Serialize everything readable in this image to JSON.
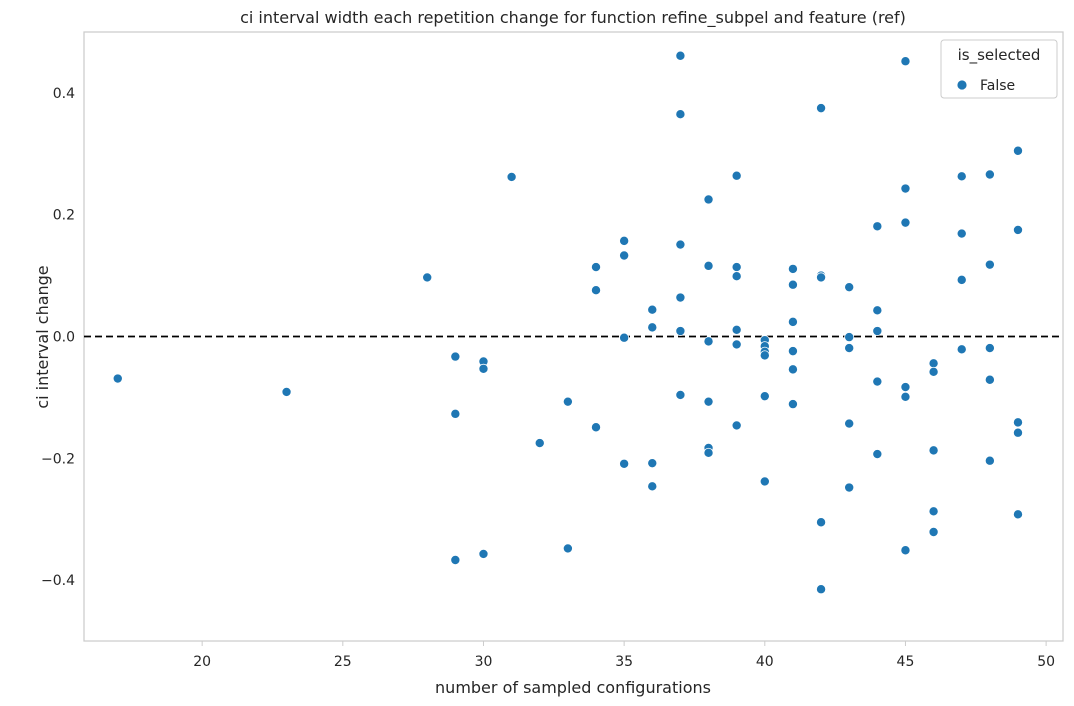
{
  "chart_data": {
    "type": "scatter",
    "title": "ci interval width each repetition change for function refine_subpel and feature (ref)",
    "xlabel": "number of sampled configurations",
    "ylabel": "ci interval change",
    "xlim": [
      15.8,
      50.6
    ],
    "ylim": [
      -0.5,
      0.5
    ],
    "xticks": [
      20,
      25,
      30,
      35,
      40,
      45,
      50
    ],
    "yticks": [
      -0.4,
      -0.2,
      0.0,
      0.2,
      0.4
    ],
    "ytick_labels": [
      "−0.4",
      "−0.2",
      "0.0",
      "0.2",
      "0.4"
    ],
    "grid": false,
    "reference_line": {
      "y": 0.0,
      "style": "dashed",
      "color": "#000000"
    },
    "legend": {
      "title": "is_selected",
      "placement": "top-right"
    },
    "series": [
      {
        "name": "False",
        "color": "#1f77b4",
        "points": [
          [
            17,
            -0.069
          ],
          [
            23,
            -0.091
          ],
          [
            28,
            0.097
          ],
          [
            29,
            -0.033
          ],
          [
            29,
            -0.127
          ],
          [
            29,
            -0.367
          ],
          [
            30,
            -0.041
          ],
          [
            30,
            -0.053
          ],
          [
            30,
            -0.357
          ],
          [
            31,
            0.262
          ],
          [
            32,
            -0.175
          ],
          [
            33,
            -0.107
          ],
          [
            33,
            -0.348
          ],
          [
            34,
            0.114
          ],
          [
            34,
            0.076
          ],
          [
            34,
            -0.149
          ],
          [
            35,
            0.157
          ],
          [
            35,
            0.133
          ],
          [
            35,
            -0.002
          ],
          [
            35,
            -0.209
          ],
          [
            36,
            0.044
          ],
          [
            36,
            0.015
          ],
          [
            36,
            -0.208
          ],
          [
            36,
            -0.246
          ],
          [
            37,
            0.461
          ],
          [
            37,
            0.365
          ],
          [
            37,
            0.151
          ],
          [
            37,
            0.064
          ],
          [
            37,
            0.009
          ],
          [
            37,
            -0.096
          ],
          [
            38,
            0.225
          ],
          [
            38,
            0.116
          ],
          [
            38,
            -0.008
          ],
          [
            38,
            -0.107
          ],
          [
            38,
            -0.183
          ],
          [
            38,
            -0.191
          ],
          [
            39,
            0.264
          ],
          [
            39,
            0.114
          ],
          [
            39,
            0.099
          ],
          [
            39,
            0.011
          ],
          [
            39,
            -0.013
          ],
          [
            39,
            -0.146
          ],
          [
            40,
            -0.006
          ],
          [
            40,
            -0.016
          ],
          [
            40,
            -0.025
          ],
          [
            40,
            -0.031
          ],
          [
            40,
            -0.098
          ],
          [
            40,
            -0.238
          ],
          [
            41,
            0.111
          ],
          [
            41,
            0.085
          ],
          [
            41,
            0.024
          ],
          [
            41,
            -0.024
          ],
          [
            41,
            -0.054
          ],
          [
            41,
            -0.111
          ],
          [
            42,
            0.375
          ],
          [
            42,
            0.1
          ],
          [
            42,
            0.097
          ],
          [
            42,
            -0.305
          ],
          [
            42,
            -0.415
          ],
          [
            43,
            0.081
          ],
          [
            43,
            -0.001
          ],
          [
            43,
            -0.019
          ],
          [
            43,
            -0.143
          ],
          [
            43,
            -0.248
          ],
          [
            44,
            0.181
          ],
          [
            44,
            0.043
          ],
          [
            44,
            0.009
          ],
          [
            44,
            -0.074
          ],
          [
            44,
            -0.193
          ],
          [
            45,
            0.452
          ],
          [
            45,
            0.243
          ],
          [
            45,
            0.187
          ],
          [
            45,
            -0.083
          ],
          [
            45,
            -0.099
          ],
          [
            45,
            -0.351
          ],
          [
            46,
            -0.044
          ],
          [
            46,
            -0.058
          ],
          [
            46,
            -0.187
          ],
          [
            46,
            -0.287
          ],
          [
            46,
            -0.321
          ],
          [
            47,
            0.263
          ],
          [
            47,
            0.169
          ],
          [
            47,
            0.093
          ],
          [
            47,
            -0.021
          ],
          [
            48,
            0.266
          ],
          [
            48,
            0.118
          ],
          [
            48,
            -0.019
          ],
          [
            48,
            -0.071
          ],
          [
            48,
            -0.204
          ],
          [
            49,
            0.305
          ],
          [
            49,
            0.175
          ],
          [
            49,
            -0.141
          ],
          [
            49,
            -0.158
          ],
          [
            49,
            -0.292
          ]
        ]
      }
    ]
  }
}
